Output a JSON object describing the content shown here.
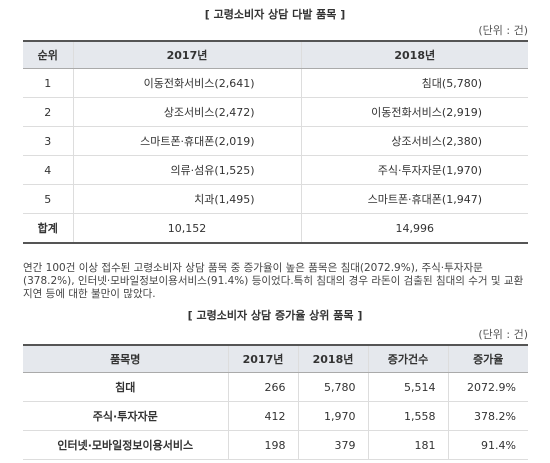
{
  "table1": {
    "title": "[ 고령소비자 상담 다발 품목 ]",
    "unit": "(단위 : 건)",
    "headers": [
      "순위",
      "2017년",
      "2018년"
    ],
    "rows": [
      {
        "rank": "1",
        "y2017": "이동전화서비스(2,641)",
        "y2018": "침대(5,780)"
      },
      {
        "rank": "2",
        "y2017": "상조서비스(2,472)",
        "y2018": "이동전화서비스(2,919)"
      },
      {
        "rank": "3",
        "y2017": "스마트폰·휴대폰(2,019)",
        "y2018": "상조서비스(2,380)"
      },
      {
        "rank": "4",
        "y2017": "의류·섬유(1,525)",
        "y2018": "주식·투자자문(1,970)"
      },
      {
        "rank": "5",
        "y2017": "치과(1,495)",
        "y2018": "스마트폰·휴대폰(1,947)"
      }
    ],
    "total": {
      "label": "합계",
      "y2017": "10,152",
      "y2018": "14,996"
    }
  },
  "paragraph": "연간 100건 이상 접수된 고령소비자 상담 품목 중 증가율이 높은 품목은 침대(2072.9%), 주식·투자자문(378.2%), 인터넷·모바일정보이용서비스(91.4%) 등이었다.특히 침대의 경우 라돈이 검출된 침대의 수거 및 교환 지연 등에 대한 불만이 많았다.",
  "table2": {
    "title": "[ 고령소비자 상담 증가율 상위 품목 ]",
    "unit": "(단위 : 건)",
    "headers": [
      "품목명",
      "2017년",
      "2018년",
      "증가건수",
      "증가율"
    ],
    "rows": [
      {
        "name": "침대",
        "y2017": "266",
        "y2018": "5,780",
        "inc": "5,514",
        "rate": "2072.9%"
      },
      {
        "name": "주식·투자자문",
        "y2017": "412",
        "y2018": "1,970",
        "inc": "1,558",
        "rate": "378.2%"
      },
      {
        "name": "인터넷·모바일정보이용서비스",
        "y2017": "198",
        "y2018": "379",
        "inc": "181",
        "rate": "91.4%"
      }
    ]
  }
}
